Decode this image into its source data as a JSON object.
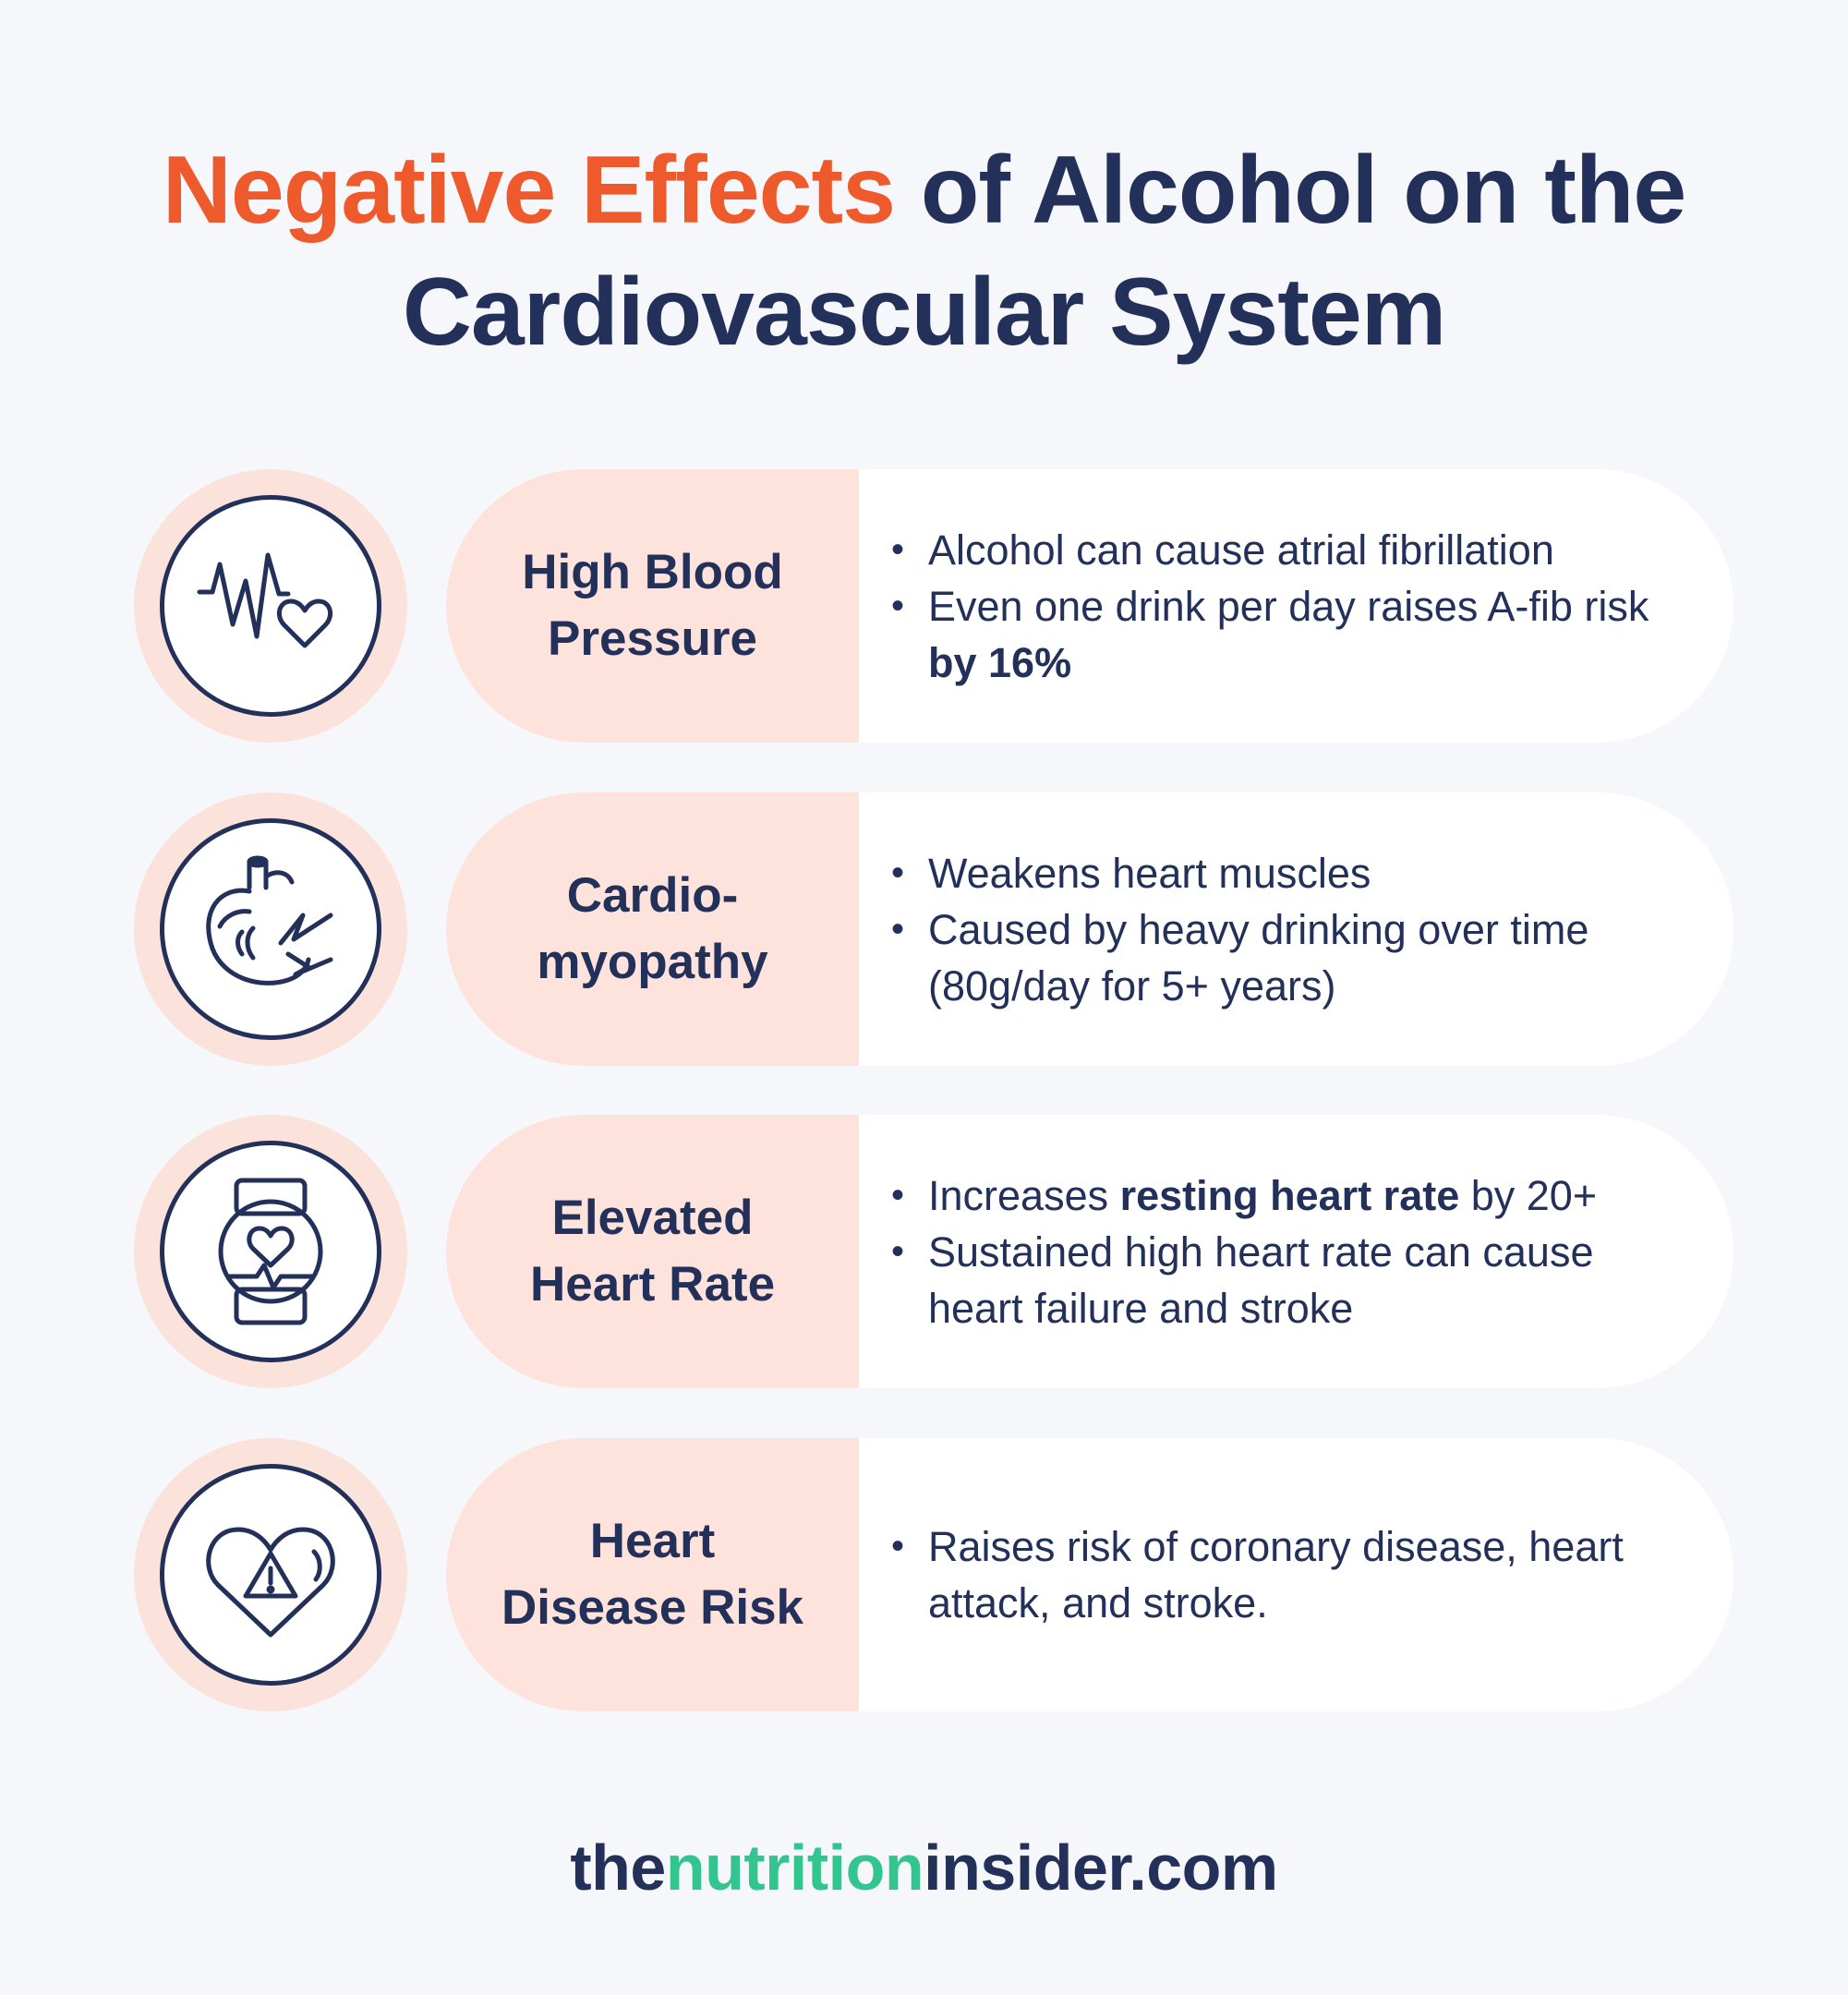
{
  "title": {
    "accent": "Negative Effects",
    "rest_line1": " of Alcohol on the",
    "line2": "Cardiovascular System"
  },
  "colors": {
    "accent": "#ee5a2c",
    "navy": "#22305a",
    "peach": "#fde3db",
    "green": "#33c58f",
    "background": "#f6f7fa"
  },
  "rows": [
    {
      "icon": "heartbeat-heart-icon",
      "label": "High Blood\nPressure",
      "bullets": [
        {
          "pre": "Alcohol can cause atrial fibrillation",
          "bold": "",
          "post": ""
        },
        {
          "pre": "Even one drink per day raises A-fib risk ",
          "bold": "by 16%",
          "post": ""
        }
      ]
    },
    {
      "icon": "damaged-heart-icon",
      "label": "Cardio-\nmyopathy",
      "bullets": [
        {
          "pre": "Weakens heart muscles",
          "bold": "",
          "post": ""
        },
        {
          "pre": "Caused by heavy drinking over time (80g/day for 5+ years)",
          "bold": "",
          "post": ""
        }
      ]
    },
    {
      "icon": "smartwatch-heart-rate-icon",
      "label": "Elevated\nHeart Rate",
      "bullets": [
        {
          "pre": "Increases ",
          "bold": "resting heart rate",
          "post": " by 20+"
        },
        {
          "pre": "Sustained high heart rate can cause heart failure and stroke",
          "bold": "",
          "post": ""
        }
      ]
    },
    {
      "icon": "heart-warning-icon",
      "label": "Heart\nDisease Risk",
      "bullets": [
        {
          "pre": "Raises risk of coronary disease, heart attack, and stroke.",
          "bold": "",
          "post": ""
        }
      ]
    }
  ],
  "footer": {
    "part1": "the",
    "part2": "nutrition",
    "part3": "insider.com"
  }
}
